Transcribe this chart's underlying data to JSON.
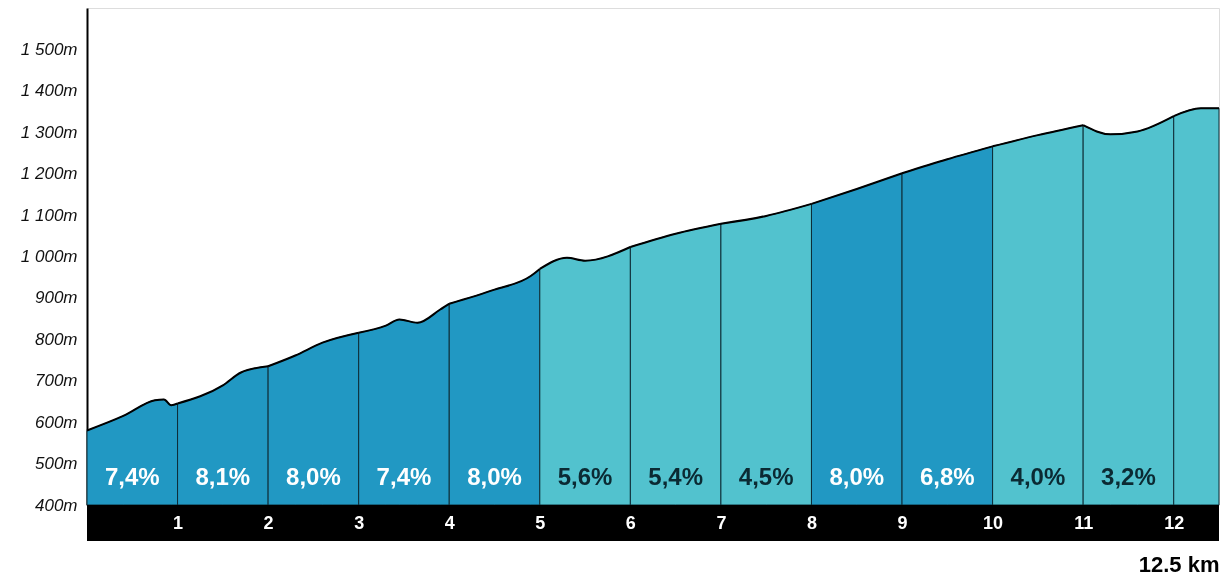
{
  "chart_data": {
    "type": "area",
    "xlabel": "12.5 km",
    "xlim": [
      0,
      12.5
    ],
    "xticks": [
      1,
      2,
      3,
      4,
      5,
      6,
      7,
      8,
      9,
      10,
      11,
      12
    ],
    "ylim": [
      400,
      1600
    ],
    "yticks": [
      {
        "value": 400,
        "label": "400m"
      },
      {
        "value": 500,
        "label": "500m"
      },
      {
        "value": 600,
        "label": "600m"
      },
      {
        "value": 700,
        "label": "700m"
      },
      {
        "value": 800,
        "label": "800m"
      },
      {
        "value": 900,
        "label": "900m"
      },
      {
        "value": 1000,
        "label": "1 000m"
      },
      {
        "value": 1100,
        "label": "1 100m"
      },
      {
        "value": 1200,
        "label": "1 200m"
      },
      {
        "value": 1300,
        "label": "1 300m"
      },
      {
        "value": 1400,
        "label": "1 400m"
      },
      {
        "value": 1500,
        "label": "1 500m"
      }
    ],
    "grid": false,
    "series": [
      {
        "color": "#2198c3",
        "x": [
          0,
          0.4,
          0.75,
          0.85,
          0.93,
          1
        ],
        "values": [
          580,
          615,
          653,
          655,
          641,
          645
        ]
      },
      {
        "color": "#2198c3",
        "x": [
          1,
          1.5,
          1.7,
          2
        ],
        "values": [
          645,
          689,
          720,
          735
        ]
      },
      {
        "color": "#2198c3",
        "x": [
          2,
          2.3,
          2.6,
          3
        ],
        "values": [
          735,
          761,
          792,
          816
        ]
      },
      {
        "color": "#2198c3",
        "x": [
          3,
          3.3,
          3.45,
          3.65,
          3.9,
          4
        ],
        "values": [
          816,
          833,
          848,
          840,
          872,
          886
        ]
      },
      {
        "color": "#2198c3",
        "x": [
          4,
          4.5,
          4.9,
          5
        ],
        "values": [
          886,
          920,
          953,
          970
        ]
      },
      {
        "color": "#52c2ce",
        "x": [
          5,
          5.3,
          5.5,
          6
        ],
        "values": [
          970,
          997,
          990,
          1023
        ]
      },
      {
        "color": "#52c2ce",
        "x": [
          6,
          6.5,
          7
        ],
        "values": [
          1023,
          1055,
          1079
        ]
      },
      {
        "color": "#52c2ce",
        "x": [
          7,
          7.5,
          8
        ],
        "values": [
          1079,
          1098,
          1127
        ]
      },
      {
        "color": "#2198c3",
        "x": [
          8,
          8.5,
          9
        ],
        "values": [
          1127,
          1163,
          1201
        ]
      },
      {
        "color": "#2198c3",
        "x": [
          9,
          9.5,
          10
        ],
        "values": [
          1201,
          1235,
          1266
        ]
      },
      {
        "color": "#52c2ce",
        "x": [
          10,
          10.5,
          11
        ],
        "values": [
          1266,
          1293,
          1317
        ]
      },
      {
        "color": "#52c2ce",
        "x": [
          11,
          11.3,
          11.6,
          12
        ],
        "values": [
          1317,
          1295,
          1302,
          1339
        ]
      },
      {
        "color": "#52c2ce",
        "x": [
          12,
          12.3,
          12.5
        ],
        "values": [
          1339,
          1358,
          1358
        ]
      }
    ],
    "annotations": [
      "7,4%",
      "8,1%",
      "8,0%",
      "7,4%",
      "8,0%",
      "5,6%",
      "5,4%",
      "4,5%",
      "8,0%",
      "6,8%",
      "4,0%",
      "3,2%"
    ]
  }
}
